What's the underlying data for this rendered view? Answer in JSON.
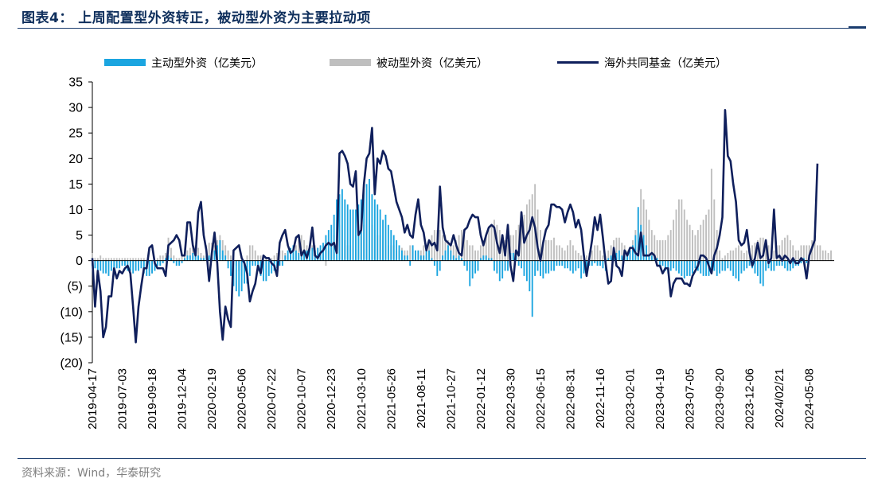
{
  "header": {
    "title": "图表4：  上周配置型外资转正，被动型外资为主要拉动项"
  },
  "footer": {
    "source": "资料来源：Wind，华泰研究"
  },
  "colors": {
    "active": "#1ba5e0",
    "passive": "#bfbfbf",
    "fund_line": "#0f1f5c",
    "axis": "#000000",
    "title": "#0f2f5c"
  },
  "chart_data": {
    "type": "bar+line",
    "title": "上周配置型外资转正，被动型外资为主要拉动项",
    "ylabel": "",
    "xlabel": "",
    "ylim": [
      -20,
      35
    ],
    "yticks": [
      35,
      30,
      25,
      20,
      15,
      10,
      5,
      0,
      -5,
      -10,
      -15,
      -20
    ],
    "ytick_labels": [
      "35",
      "30",
      "25",
      "20",
      "15",
      "10",
      "5",
      "0",
      "(5)",
      "(10)",
      "(15)",
      "(20)"
    ],
    "x_tick_labels": [
      "2019-04-17",
      "2019-07-03",
      "2019-09-18",
      "2019-12-04",
      "2020-02-19",
      "2020-05-06",
      "2020-07-22",
      "2020-10-07",
      "2020-12-23",
      "2021-03-10",
      "2021-05-26",
      "2021-08-11",
      "2021-10-27",
      "2022-01-12",
      "2022-03-30",
      "2022-06-15",
      "2022-08-31",
      "2022-11-16",
      "2023-02-01",
      "2023-04-19",
      "2023-07-05",
      "2023-09-20",
      "2023-12-06",
      "2024/02/21",
      "2024-05-08"
    ],
    "tick_interval_weeks": 11,
    "legend": [
      "主动型外资（亿美元）",
      "被动型外资（亿美元）",
      "海外共同基金（亿美元）"
    ],
    "legend_position": "top-center",
    "series": [
      {
        "name": "主动型外资（亿美元）",
        "type": "bar",
        "values": [
          -1,
          -1.5,
          -2,
          -2,
          -2.5,
          -2.5,
          -3,
          -2,
          -2,
          -1.5,
          -1.5,
          -1,
          -1,
          -2,
          -2,
          -2.5,
          -2,
          -2,
          -1.5,
          -2.5,
          -3,
          -3,
          -2.5,
          -2,
          -1,
          -1,
          -0.5,
          0.5,
          1,
          0.5,
          -0.5,
          -1,
          -1,
          -0.5,
          0.5,
          1,
          1,
          1.5,
          1.5,
          1,
          0.5,
          0.5,
          1,
          1,
          1.5,
          2,
          3,
          4,
          2,
          1,
          -1.5,
          -3,
          -5,
          -6,
          -7,
          -6,
          -4.5,
          -4.5,
          -3,
          -1,
          -1,
          -2,
          -3,
          -4,
          -4,
          -3,
          -2.5,
          -2,
          -1.5,
          -1,
          -1,
          1,
          2,
          2.5,
          3,
          2,
          1.5,
          1,
          1.5,
          2,
          2.5,
          2.5,
          2,
          2.5,
          3,
          3.5,
          5,
          6,
          7,
          9,
          12,
          13,
          14,
          12,
          11,
          10,
          10,
          10,
          11,
          12,
          14,
          15,
          16,
          13,
          12,
          11,
          10,
          8,
          9,
          7,
          6,
          5,
          4,
          3,
          2,
          1,
          1,
          -1,
          3,
          2,
          2,
          1,
          1,
          2,
          2,
          0.5,
          -1,
          -3,
          -2,
          1,
          2,
          3,
          2,
          1,
          0.5,
          1,
          0.5,
          -1,
          -2,
          -5,
          -3.5,
          -2.5,
          -2,
          0.5,
          1,
          1,
          0.5,
          0.5,
          -2,
          -2.5,
          -4,
          -3.5,
          -2,
          -2,
          1.5,
          1.5,
          1,
          -1,
          -1.5,
          -3,
          -4,
          -6,
          -11,
          -3,
          -2,
          -3,
          -3.5,
          -2.5,
          -2.5,
          -2,
          -2,
          -1,
          -1,
          -1,
          -1.5,
          -1.5,
          -2,
          -2.5,
          -2,
          -1.5,
          -3.5,
          -2.5,
          -1.5,
          -1,
          -1,
          -0.5,
          -1,
          -1,
          -1.5,
          -2,
          0.5,
          1,
          1,
          1.5,
          2,
          1,
          1,
          1,
          2,
          3,
          5,
          10.5,
          7,
          5,
          3,
          1,
          1,
          1,
          0.5,
          -1,
          -1,
          -2,
          -2.5,
          -2,
          -1.5,
          -2,
          -2.5,
          -3,
          -3.5,
          -3,
          -3,
          -2.5,
          -1.5,
          -2,
          -2.5,
          -3,
          -3,
          -3,
          -2.5,
          -2,
          -3,
          -2.5,
          -2,
          -2,
          -1.5,
          -2,
          -3,
          -3.5,
          -4,
          -2.5,
          -2,
          -1.5,
          -1,
          -1.5,
          -2.5,
          -3,
          -4.5,
          -5,
          -2,
          -1.5,
          -2,
          -2,
          -1,
          -1,
          -1,
          -1.5,
          -2,
          -2,
          -1.5,
          -1,
          -1,
          -0.5,
          0.5,
          -0.5
        ]
      },
      {
        "name": "被动型外资（亿美元）",
        "type": "bar",
        "values": [
          1.5,
          0.5,
          0.5,
          1,
          0.5,
          0.5,
          0.5,
          0.5,
          0.5,
          0.5,
          0.5,
          0.5,
          0.5,
          0.5,
          0.5,
          0.5,
          0.5,
          0.5,
          0.5,
          0.5,
          -1,
          -2,
          -2.5,
          -1,
          0.5,
          1,
          1,
          1.5,
          4.5,
          2.5,
          1,
          0.5,
          0.5,
          1,
          1,
          2,
          2.5,
          3,
          3,
          2.5,
          1.5,
          1,
          3,
          3.5,
          3.5,
          3,
          4,
          5,
          4,
          3,
          2,
          1,
          0.5,
          -1,
          -2,
          -3,
          -2,
          1,
          3,
          3,
          2,
          1,
          1,
          1,
          0.5,
          0.5,
          0.5,
          1,
          1.5,
          2,
          2,
          1.5,
          1,
          1,
          2,
          3,
          4,
          5,
          4,
          3,
          2,
          3,
          3,
          2.5,
          2,
          2,
          -1,
          2,
          3,
          5,
          8,
          7,
          6,
          4,
          3,
          3,
          4,
          5,
          6,
          6,
          7,
          8,
          8,
          7,
          6,
          5,
          5,
          4,
          4,
          3,
          3,
          3,
          2,
          2,
          2.5,
          2,
          2,
          3,
          3,
          2,
          2,
          2,
          3,
          3,
          4,
          5,
          6,
          6,
          6,
          5,
          5,
          4,
          3,
          3,
          4,
          5,
          6,
          5,
          4,
          3,
          3,
          2,
          2,
          3,
          4,
          5,
          6,
          7,
          8,
          7,
          6,
          5,
          4,
          4,
          5,
          5,
          6,
          7,
          8,
          9,
          11,
          12,
          13,
          15,
          10,
          6,
          4,
          4,
          4,
          4,
          4.5,
          3,
          3,
          2.5,
          2,
          3,
          4,
          3,
          2,
          1.5,
          1,
          1,
          1,
          1.5,
          2,
          3,
          3,
          2,
          1,
          1,
          2,
          3,
          4,
          4.5,
          4.5,
          3.5,
          3,
          2,
          2,
          4,
          6,
          10,
          14,
          12,
          10,
          8,
          6,
          5,
          4,
          4,
          4,
          4,
          5,
          6,
          8,
          10,
          12,
          12,
          10,
          8,
          7,
          6,
          5,
          6,
          7,
          8,
          9,
          10,
          18,
          12,
          6,
          2,
          0.5,
          1,
          1.5,
          2,
          2,
          2.5,
          3,
          2,
          1.5,
          2,
          2.5,
          3,
          3.5,
          4,
          4.5,
          4.5,
          4,
          3,
          2,
          2,
          3,
          3,
          4,
          4.5,
          5,
          4,
          3,
          2,
          2,
          3,
          3,
          3,
          3,
          4,
          4,
          3,
          3,
          2,
          2,
          1.5,
          2
        ]
      },
      {
        "name": "海外共同基金（亿美元）",
        "type": "line",
        "values": [
          0.5,
          -9,
          -2,
          -6,
          -15,
          -13,
          -7,
          -7,
          -1.5,
          -3.5,
          -2,
          -2.5,
          -1.5,
          -1,
          -2.5,
          -9,
          -16,
          -9,
          -5,
          -1.5,
          -1.5,
          2.5,
          3,
          -0.5,
          -1.5,
          -1.5,
          -1.5,
          -3,
          3,
          3.5,
          4,
          5,
          4,
          1,
          1,
          7.5,
          7.5,
          3,
          1,
          9.5,
          11.5,
          5,
          2,
          -4,
          1.5,
          5.5,
          -0.5,
          -10,
          -15.5,
          -9,
          -11.5,
          -13,
          2,
          2.5,
          3,
          0.5,
          -0.5,
          -2.5,
          -8,
          -6,
          -4.5,
          -1,
          -2.5,
          1,
          0.5,
          0.5,
          -0.5,
          -1,
          -3,
          3.5,
          5,
          6,
          3,
          1.5,
          2,
          4.5,
          5,
          1,
          2,
          0.5,
          2.5,
          6.5,
          1,
          0.5,
          1.5,
          2,
          3,
          3.5,
          3,
          3.5,
          1.5,
          21,
          21.5,
          20.5,
          19,
          15,
          14.5,
          17.5,
          5,
          6,
          15,
          20,
          21,
          26,
          13,
          20,
          19,
          21.5,
          20.5,
          18,
          17.5,
          14.5,
          11.5,
          10,
          8.5,
          5.5,
          7,
          5,
          4.5,
          9,
          12,
          7,
          5.5,
          2,
          4,
          3,
          3.5,
          2,
          14.5,
          6.5,
          4,
          3.5,
          3,
          5,
          3,
          1.5,
          1,
          6,
          6.5,
          8,
          9,
          8.5,
          8.5,
          5,
          3,
          5,
          6.5,
          7,
          6.5,
          3.5,
          1.5,
          5,
          1,
          7,
          -1,
          -4,
          2,
          1,
          9.5,
          3.5,
          5,
          6,
          8.5,
          6.5,
          2.5,
          0,
          3.5,
          6,
          7,
          11,
          11,
          10.5,
          10.5,
          10,
          7.5,
          9.5,
          11,
          9.5,
          6.5,
          8,
          6,
          1,
          -3,
          0.5,
          4,
          8.5,
          6,
          9,
          4.5,
          -0.5,
          -4.5,
          -4,
          2.5,
          -1,
          -1.5,
          -3,
          2,
          1,
          2.5,
          2.5,
          1.5,
          1,
          5.5,
          1,
          1,
          1,
          1.5,
          1,
          -1,
          -1,
          -2.5,
          -1.5,
          -1.5,
          -7,
          -4.5,
          -3.5,
          -3.5,
          -3.5,
          -4.5,
          -4.5,
          -5,
          -3,
          -2,
          -1,
          1,
          1,
          0.5,
          -1,
          -2.5,
          1,
          2.5,
          5,
          8.5,
          29.5,
          20.5,
          19.5,
          15,
          11.5,
          4,
          3,
          3.5,
          6,
          1.5,
          -1,
          0.5,
          3.5,
          0.5,
          1,
          4,
          -0.5,
          0.5,
          10,
          0.5,
          1,
          0,
          1,
          0.5,
          -0.5,
          0.5,
          -0.5,
          -0.5,
          0.5,
          0,
          -3.5,
          1,
          2.5,
          4,
          19
        ]
      }
    ]
  }
}
